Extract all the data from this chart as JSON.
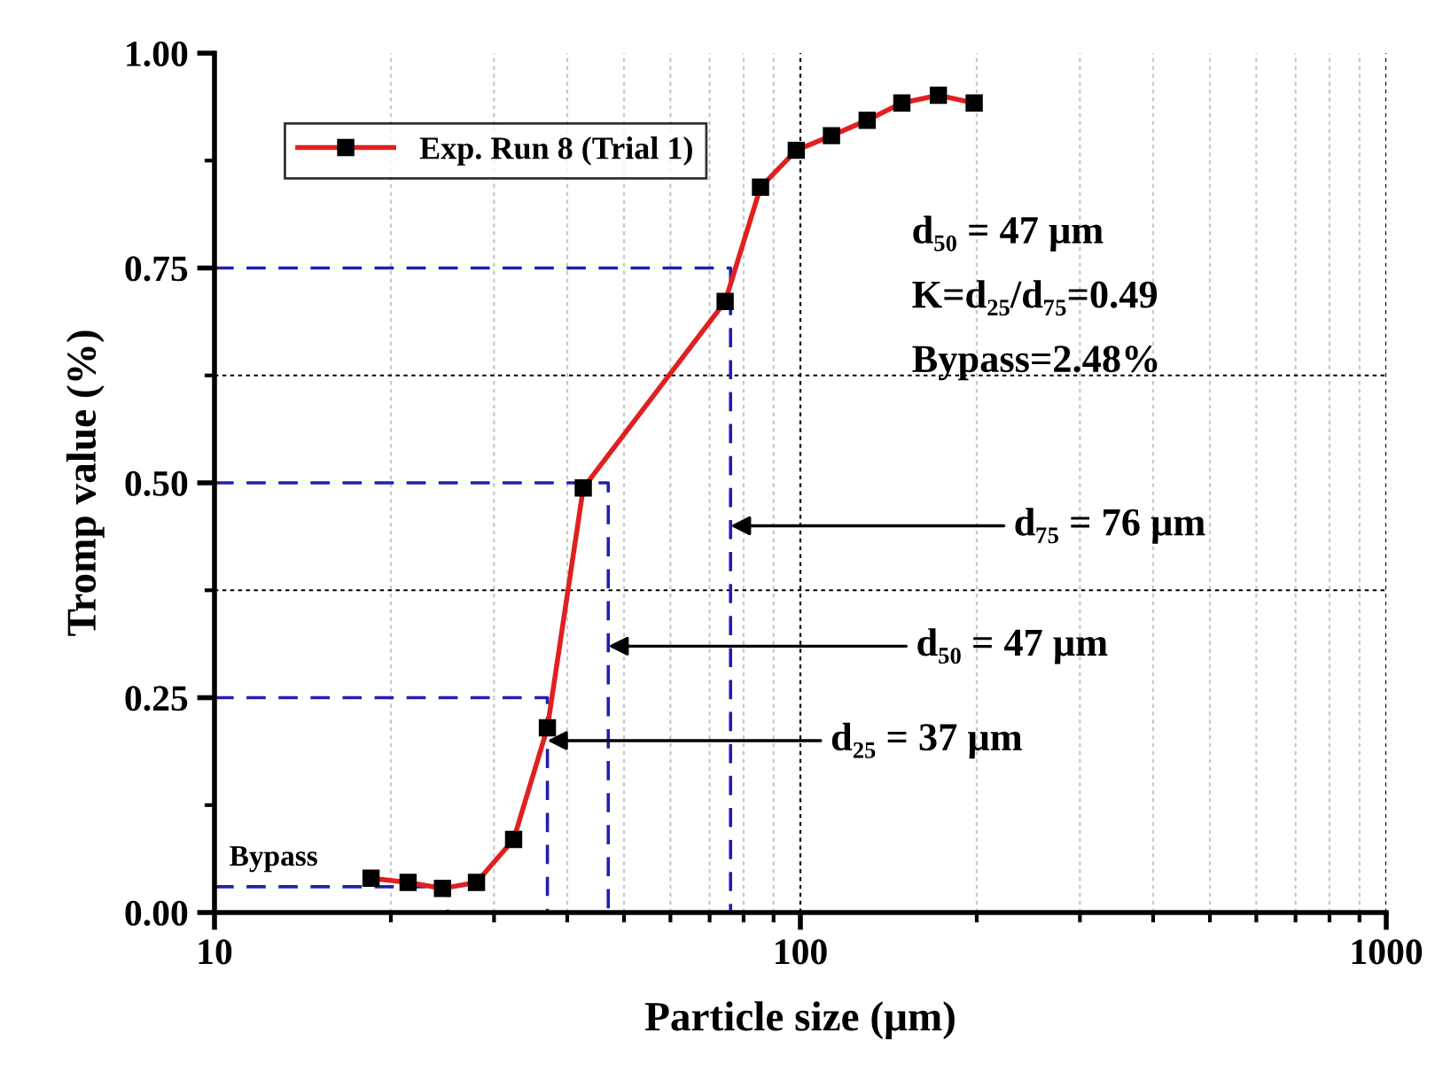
{
  "chart_data": {
    "type": "line",
    "xlabel": "Particle size (μm)",
    "ylabel": "Tromp value (%)",
    "log": "x",
    "xlim": [
      10,
      1000
    ],
    "xticks": [
      10,
      100,
      1000
    ],
    "ylim": [
      0,
      1
    ],
    "yticks": [
      {
        "value": 0,
        "label": "0.00"
      },
      {
        "value": 0.25,
        "label": "0.25"
      },
      {
        "value": 0.5,
        "label": "0.50"
      },
      {
        "value": 0.75,
        "label": "0.75"
      },
      {
        "value": 1,
        "label": "1.00"
      }
    ],
    "grid": "x",
    "legend": "top left",
    "marker": "square",
    "line_style": "solid",
    "series": [
      {
        "name": "Exp. Run 8 (Trial 1)",
        "color": "#e02020",
        "x": [
          18.5,
          21.4,
          24.5,
          28,
          32.4,
          37,
          42.6,
          74.4,
          85.5,
          98.4,
          113,
          130,
          149,
          172,
          198
        ],
        "values": [
          0.04,
          0.035,
          0.028,
          0.035,
          0.085,
          0.215,
          0.494,
          0.711,
          0.844,
          0.887,
          0.904,
          0.922,
          0.942,
          0.951,
          0.942
        ]
      },
      {
        "color": "#2020b0",
        "type": "line",
        "marker": "none",
        "line_style": "dashed",
        "x": [
          10,
          76,
          76
        ],
        "values": [
          0.75,
          0.75,
          0
        ]
      },
      {
        "color": "#2020b0",
        "type": "line",
        "marker": "none",
        "line_style": "dashed",
        "x": [
          10,
          47,
          47
        ],
        "values": [
          0.5,
          0.5,
          0
        ]
      },
      {
        "color": "#2020b0",
        "type": "line",
        "marker": "none",
        "line_style": "dashed",
        "x": [
          10,
          37,
          37
        ],
        "values": [
          0.25,
          0.25,
          0
        ]
      },
      {
        "color": "#2020b0",
        "type": "line",
        "marker": "none",
        "line_style": "dashed",
        "x": [
          10,
          25,
          25
        ],
        "values": [
          0.03,
          0.03,
          0
        ]
      }
    ],
    "ref_lines": [
      {
        "axis": "y",
        "value": 0.375,
        "label": null,
        "color": "#000000",
        "line_style": "dotted"
      },
      {
        "axis": "y",
        "value": 0.625,
        "label": null,
        "color": "#000000",
        "line_style": "dotted"
      }
    ],
    "annotations": [
      {
        "text": "d₇₅ = 76 μm",
        "x": 76,
        "y": 0.45
      },
      {
        "text": "d₅₀ = 47 μm",
        "x": 47,
        "y": 0.31
      },
      {
        "text": "d₂₅ = 37 μm",
        "x": 37,
        "y": 0.2
      },
      {
        "text": "Bypass",
        "x": 10,
        "y": 0.03
      },
      "d₅₀ = 47 μm",
      "K=d₂₅/d₇₅=0.49",
      "Bypass=2.48%"
    ]
  }
}
